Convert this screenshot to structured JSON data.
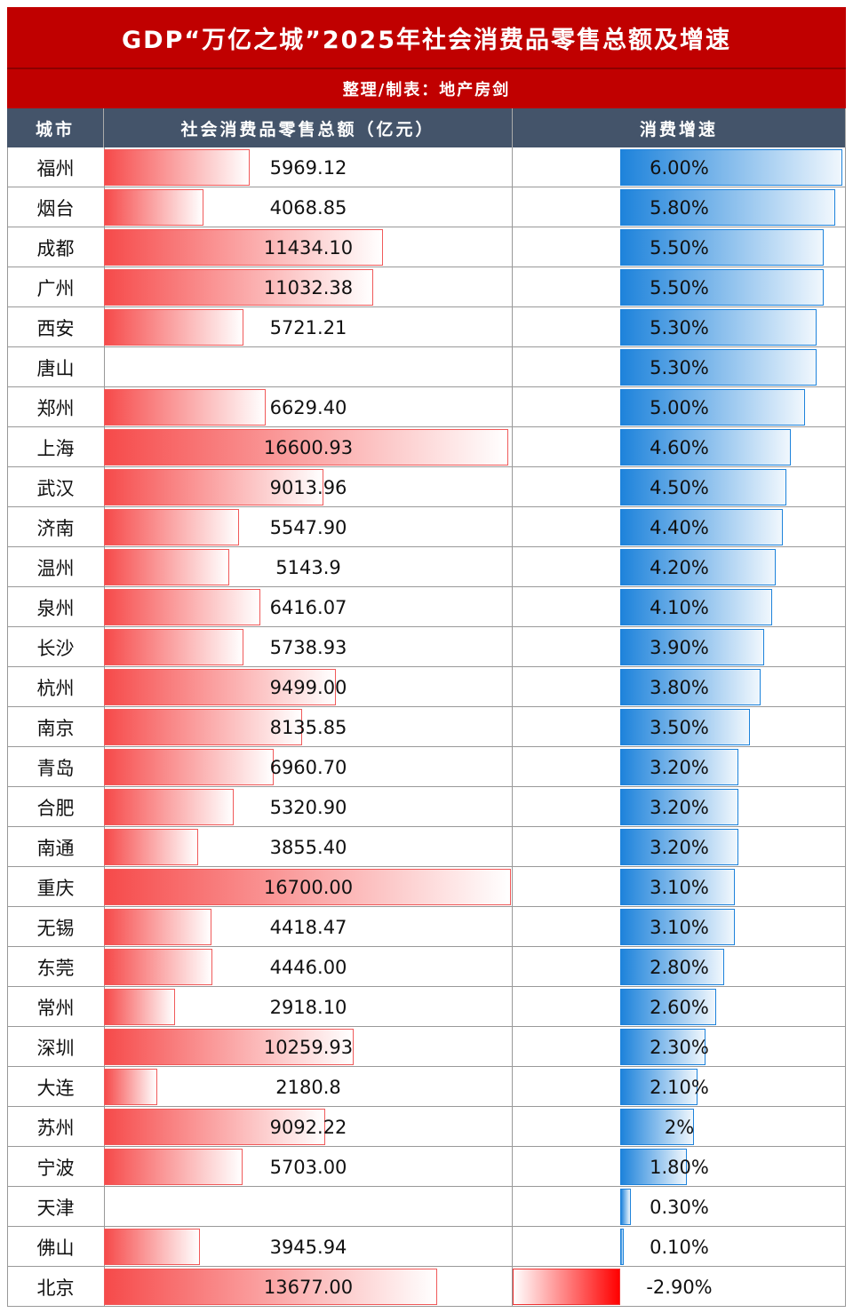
{
  "header": {
    "title": "GDP“万亿之城”2025年社会消费品零售总额及增速",
    "subtitle": "整理/制表：地产房剑"
  },
  "table": {
    "columns": [
      "城市",
      "社会消费品零售总额（亿元）",
      "消费增速"
    ],
    "rows": [
      {
        "city": "福州",
        "sales": 5969.12,
        "sales_label": "5969.12",
        "growth": 6.0,
        "growth_label": "6.00%"
      },
      {
        "city": "烟台",
        "sales": 4068.85,
        "sales_label": "4068.85",
        "growth": 5.8,
        "growth_label": "5.80%"
      },
      {
        "city": "成都",
        "sales": 11434.1,
        "sales_label": "11434.10",
        "growth": 5.5,
        "growth_label": "5.50%"
      },
      {
        "city": "广州",
        "sales": 11032.38,
        "sales_label": "11032.38",
        "growth": 5.5,
        "growth_label": "5.50%"
      },
      {
        "city": "西安",
        "sales": 5721.21,
        "sales_label": "5721.21",
        "growth": 5.3,
        "growth_label": "5.30%"
      },
      {
        "city": "唐山",
        "sales": null,
        "sales_label": null,
        "growth": 5.3,
        "growth_label": "5.30%"
      },
      {
        "city": "郑州",
        "sales": 6629.4,
        "sales_label": "6629.40",
        "growth": 5.0,
        "growth_label": "5.00%"
      },
      {
        "city": "上海",
        "sales": 16600.93,
        "sales_label": "16600.93",
        "growth": 4.6,
        "growth_label": "4.60%"
      },
      {
        "city": "武汉",
        "sales": 9013.96,
        "sales_label": "9013.96",
        "growth": 4.5,
        "growth_label": "4.50%"
      },
      {
        "city": "济南",
        "sales": 5547.9,
        "sales_label": "5547.90",
        "growth": 4.4,
        "growth_label": "4.40%"
      },
      {
        "city": "温州",
        "sales": 5143.9,
        "sales_label": "5143.9",
        "growth": 4.2,
        "growth_label": "4.20%"
      },
      {
        "city": "泉州",
        "sales": 6416.07,
        "sales_label": "6416.07",
        "growth": 4.1,
        "growth_label": "4.10%"
      },
      {
        "city": "长沙",
        "sales": 5738.93,
        "sales_label": "5738.93",
        "growth": 3.9,
        "growth_label": "3.90%"
      },
      {
        "city": "杭州",
        "sales": 9499.0,
        "sales_label": "9499.00",
        "growth": 3.8,
        "growth_label": "3.80%"
      },
      {
        "city": "南京",
        "sales": 8135.85,
        "sales_label": "8135.85",
        "growth": 3.5,
        "growth_label": "3.50%"
      },
      {
        "city": "青岛",
        "sales": 6960.7,
        "sales_label": "6960.70",
        "growth": 3.2,
        "growth_label": "3.20%"
      },
      {
        "city": "合肥",
        "sales": 5320.9,
        "sales_label": "5320.90",
        "growth": 3.2,
        "growth_label": "3.20%"
      },
      {
        "city": "南通",
        "sales": 3855.4,
        "sales_label": "3855.40",
        "growth": 3.2,
        "growth_label": "3.20%"
      },
      {
        "city": "重庆",
        "sales": 16700.0,
        "sales_label": "16700.00",
        "growth": 3.1,
        "growth_label": "3.10%"
      },
      {
        "city": "无锡",
        "sales": 4418.47,
        "sales_label": "4418.47",
        "growth": 3.1,
        "growth_label": "3.10%"
      },
      {
        "city": "东莞",
        "sales": 4446.0,
        "sales_label": "4446.00",
        "growth": 2.8,
        "growth_label": "2.80%"
      },
      {
        "city": "常州",
        "sales": 2918.1,
        "sales_label": "2918.10",
        "growth": 2.6,
        "growth_label": "2.60%"
      },
      {
        "city": "深圳",
        "sales": 10259.93,
        "sales_label": "10259.93",
        "growth": 2.3,
        "growth_label": "2.30%"
      },
      {
        "city": "大连",
        "sales": 2180.8,
        "sales_label": "2180.8",
        "growth": 2.1,
        "growth_label": "2.10%"
      },
      {
        "city": "苏州",
        "sales": 9092.22,
        "sales_label": "9092.22",
        "growth": 2,
        "growth_label": "2%"
      },
      {
        "city": "宁波",
        "sales": 5703.0,
        "sales_label": "5703.00",
        "growth": 1.8,
        "growth_label": "1.80%"
      },
      {
        "city": "天津",
        "sales": null,
        "sales_label": null,
        "growth": 0.3,
        "growth_label": "0.30%"
      },
      {
        "city": "佛山",
        "sales": 3945.94,
        "sales_label": "3945.94",
        "growth": 0.1,
        "growth_label": "0.10%"
      },
      {
        "city": "北京",
        "sales": 13677.0,
        "sales_label": "13677.00",
        "growth": -2.9,
        "growth_label": "-2.90%"
      }
    ]
  }
}
